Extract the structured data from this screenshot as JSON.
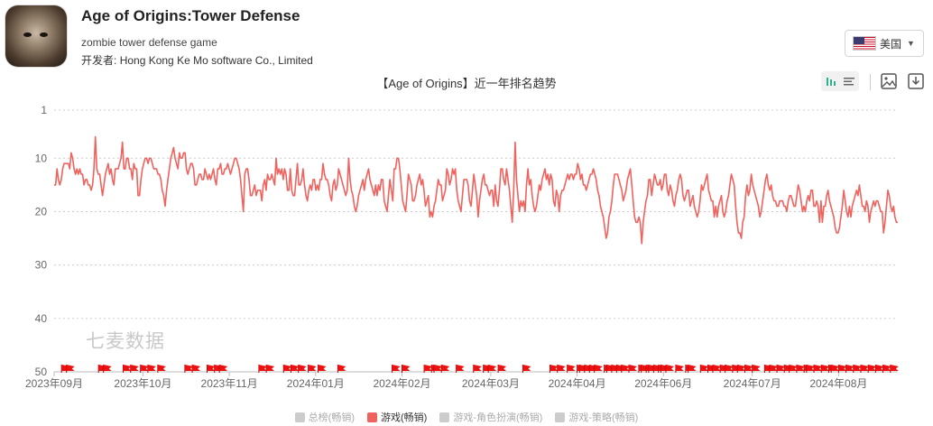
{
  "app": {
    "title": "Age of Origins:Tower Defense",
    "subtitle": "zombie tower defense game",
    "developer_label": "开发者:",
    "developer": "Hong Kong Ke Mo software Co., Limited"
  },
  "country": {
    "label": "美国",
    "flag": "us-flag-icon"
  },
  "toolbar": {
    "icons": [
      "bar-chart-icon",
      "list-icon",
      "save-image-icon",
      "download-icon"
    ]
  },
  "watermark": "七麦数据",
  "colors": {
    "line": "#f0625d",
    "flag": "#ee1111",
    "grid": "#cccccc",
    "accent": "#2fb08c",
    "legend_inactive": "#cccccc"
  },
  "chart_data": {
    "type": "line",
    "title": "【Age of Origins】近一年排名趋势",
    "y_reversed": true,
    "ylim": [
      1,
      50
    ],
    "y_ticks": [
      1,
      10,
      20,
      30,
      40,
      50
    ],
    "x_tick_labels": [
      "2023年09月",
      "2023年10月",
      "2023年11月",
      "2024年01月",
      "2024年02月",
      "2024年03月",
      "2024年04月",
      "2024年06月",
      "2024年07月",
      "2024年08月"
    ],
    "x_range_days": [
      0,
      342
    ],
    "x_tick_days": [
      0,
      36,
      71,
      106,
      141,
      177,
      212,
      247,
      283,
      318
    ],
    "grid": "horizontal dotted",
    "legend_position": "bottom",
    "legend": [
      {
        "name": "总榜(畅销)",
        "active": false
      },
      {
        "name": "游戏(畅销)",
        "active": true
      },
      {
        "name": "游戏-角色扮演(畅销)",
        "active": false
      },
      {
        "name": "游戏-策略(畅销)",
        "active": false
      }
    ],
    "series": [
      {
        "name": "游戏(畅销)",
        "values": [
          15,
          15,
          12,
          14,
          15,
          14,
          12,
          11,
          11,
          11,
          11,
          12,
          9,
          10,
          12,
          13,
          12,
          13,
          12,
          13,
          13,
          15,
          14,
          14,
          15,
          15,
          16,
          15,
          12,
          6,
          12,
          13,
          13,
          15,
          17,
          15,
          13,
          12,
          11,
          13,
          12,
          14,
          15,
          12,
          12,
          12,
          11,
          10,
          7,
          12,
          12,
          10,
          10,
          12,
          12,
          14,
          11,
          12,
          12,
          17,
          17,
          14,
          12,
          11,
          10,
          10,
          11,
          10,
          10,
          11,
          12,
          12,
          12,
          13,
          13,
          14,
          16,
          17,
          19,
          16,
          14,
          12,
          10,
          9,
          8,
          10,
          11,
          12,
          9,
          10,
          10,
          9,
          9,
          12,
          13,
          12,
          11,
          11,
          12,
          15,
          15,
          14,
          13,
          13,
          14,
          14,
          12,
          13,
          14,
          13,
          14,
          13,
          12,
          14,
          15,
          12,
          12,
          11,
          13,
          13,
          12,
          12,
          11,
          12,
          13,
          12,
          11,
          10,
          10,
          11,
          12,
          14,
          17,
          20,
          13,
          12,
          12,
          14,
          17,
          17,
          16,
          15,
          17,
          16,
          16,
          16,
          18,
          15,
          14,
          16,
          13,
          14,
          14,
          13,
          14,
          15,
          10,
          13,
          12,
          13,
          12,
          14,
          12,
          13,
          16,
          16,
          12,
          16,
          17,
          17,
          14,
          11,
          15,
          15,
          14,
          12,
          15,
          17,
          18,
          16,
          15,
          16,
          14,
          14,
          16,
          15,
          16,
          14,
          14,
          11,
          13,
          14,
          14,
          15,
          17,
          18,
          15,
          14,
          16,
          15,
          12,
          13,
          14,
          15,
          16,
          17,
          16,
          10,
          14,
          16,
          17,
          19,
          20,
          19,
          17,
          16,
          15,
          14,
          16,
          14,
          13,
          12,
          14,
          15,
          16,
          17,
          15,
          17,
          15,
          16,
          14,
          14,
          18,
          19,
          20,
          17,
          14,
          16,
          18,
          12,
          12,
          10,
          10,
          12,
          15,
          18,
          19,
          20,
          17,
          13,
          14,
          15,
          18,
          18,
          17,
          15,
          14,
          13,
          15,
          14,
          16,
          19,
          18,
          17,
          21,
          20,
          21,
          19,
          18,
          16,
          14,
          15,
          15,
          18,
          17,
          16,
          12,
          13,
          15,
          14,
          12,
          13,
          12,
          16,
          18,
          19,
          20,
          17,
          14,
          14,
          14,
          15,
          18,
          19,
          16,
          13,
          15,
          17,
          21,
          18,
          16,
          14,
          13,
          15,
          15,
          16,
          17,
          16,
          16,
          19,
          15,
          18,
          19,
          16,
          12,
          12,
          14,
          15,
          12,
          14,
          16,
          19,
          22,
          16,
          7,
          14,
          17,
          20,
          18,
          19,
          18,
          20,
          15,
          12,
          15,
          14,
          17,
          19,
          20,
          19,
          17,
          15,
          16,
          14,
          13,
          12,
          14,
          13,
          15,
          13,
          14,
          18,
          19,
          16,
          17,
          20,
          17,
          16,
          16,
          15,
          14,
          13,
          14,
          13,
          13,
          14,
          13,
          13,
          11,
          12,
          14,
          13,
          15,
          15,
          16,
          15,
          14,
          13,
          13,
          12,
          13,
          14,
          16,
          17,
          19,
          20,
          21,
          23,
          25,
          24,
          21,
          20,
          18,
          15,
          13,
          13,
          13,
          14,
          15,
          16,
          18,
          17,
          16,
          14,
          13,
          12,
          15,
          18,
          21,
          22,
          22,
          21,
          22,
          26,
          22,
          20,
          18,
          17,
          14,
          14,
          17,
          15,
          13,
          14,
          15,
          15,
          14,
          16,
          15,
          13,
          13,
          16,
          17,
          15,
          16,
          18,
          19,
          17,
          16,
          14,
          13,
          14,
          17,
          18,
          17,
          16,
          16,
          19,
          18,
          17,
          19,
          20,
          21,
          20,
          18,
          15,
          16,
          15,
          14,
          13,
          16,
          17,
          18,
          18,
          21,
          19,
          21,
          19,
          18,
          17,
          20,
          21,
          20,
          18,
          17,
          15,
          13,
          14,
          15,
          19,
          22,
          24,
          24,
          25,
          22,
          21,
          17,
          15,
          17,
          16,
          13,
          15,
          16,
          17,
          18,
          19,
          21,
          20,
          18,
          16,
          14,
          13,
          15,
          16,
          15,
          17,
          18,
          18,
          19,
          19,
          18,
          18,
          18,
          19,
          19,
          20,
          18,
          17,
          17,
          18,
          19,
          19,
          17,
          15,
          16,
          18,
          20,
          19,
          20,
          18,
          17,
          18,
          16,
          16,
          19,
          19,
          18,
          19,
          22,
          18,
          22,
          19,
          19,
          17,
          16,
          18,
          19,
          20,
          21,
          23,
          24,
          24,
          23,
          21,
          19,
          16,
          18,
          20,
          21,
          19,
          21,
          19,
          18,
          17,
          16,
          17,
          15,
          17,
          19,
          19,
          20,
          18,
          19,
          22,
          20,
          19,
          18,
          19,
          18,
          18,
          19,
          20,
          20,
          24,
          22,
          19,
          16,
          17,
          19,
          20,
          19,
          21,
          22,
          22
        ]
      }
    ],
    "flag_markers_days": [
      3,
      5,
      18,
      20,
      28,
      31,
      35,
      38,
      42,
      53,
      56,
      62,
      65,
      67,
      83,
      86,
      93,
      96,
      99,
      103,
      107,
      115,
      137,
      141,
      150,
      153,
      154,
      157,
      163,
      170,
      174,
      176,
      180,
      190,
      201,
      204,
      208,
      212,
      213,
      215,
      217,
      219,
      223,
      224,
      226,
      228,
      230,
      233,
      237,
      238,
      240,
      241,
      243,
      245,
      246,
      248,
      252,
      256,
      257,
      262,
      265,
      267,
      270,
      272,
      275,
      277,
      280,
      283,
      288,
      290,
      293,
      296,
      298,
      301,
      304,
      305,
      308,
      311,
      314,
      315,
      318,
      321,
      324,
      327,
      330,
      333,
      336,
      339
    ]
  }
}
